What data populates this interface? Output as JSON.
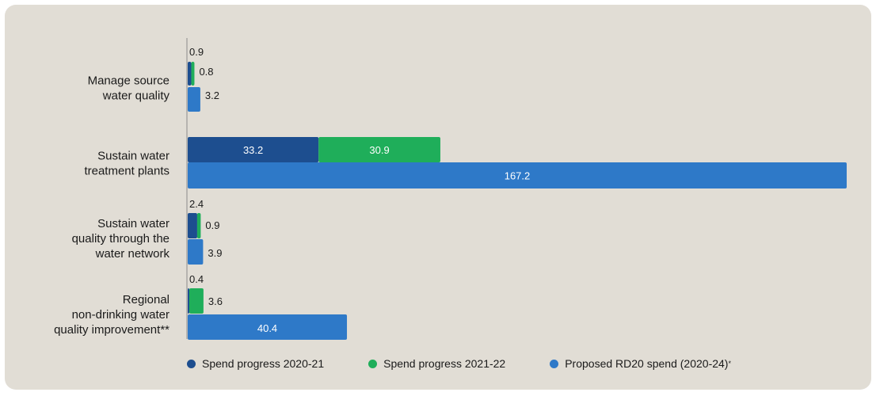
{
  "chart_data": {
    "type": "bar",
    "orientation": "horizontal",
    "categories": [
      [
        "Manage source",
        "water quality"
      ],
      [
        "Sustain water",
        "treatment plants"
      ],
      [
        "Sustain water",
        "quality through the",
        "water network"
      ],
      [
        "Regional",
        "non-drinking water",
        "quality improvement**"
      ]
    ],
    "series": [
      {
        "name": "Spend progress 2020-21",
        "color": "#1d4e8f",
        "values": [
          0.9,
          33.2,
          2.4,
          0.4
        ],
        "labels": [
          "0.9",
          "33.2",
          "2.4",
          "0.4"
        ]
      },
      {
        "name": "Spend progress 2021-22",
        "color": "#1fae5a",
        "values": [
          0.8,
          30.9,
          0.9,
          3.6
        ],
        "labels": [
          "0.8",
          "30.9",
          "0.9",
          "3.6"
        ]
      },
      {
        "name": "Proposed RD20 spend (2020-24)",
        "color": "#2e79c8",
        "values": [
          3.2,
          167.2,
          3.9,
          40.4
        ],
        "labels": [
          "3.2",
          "167.2",
          "3.9",
          "40.4"
        ]
      }
    ],
    "stacked_series": [
      0,
      1
    ],
    "xlim": [
      0,
      167.2
    ],
    "legend_placement": "bottom",
    "legend": [
      {
        "label": "Spend progress 2020-21",
        "color": "#1d4e8f",
        "sup": ""
      },
      {
        "label": "Spend progress 2021-22",
        "color": "#1fae5a",
        "sup": ""
      },
      {
        "label": "Proposed RD20 spend (2020-24)",
        "color": "#2e79c8",
        "sup": "*"
      }
    ]
  }
}
